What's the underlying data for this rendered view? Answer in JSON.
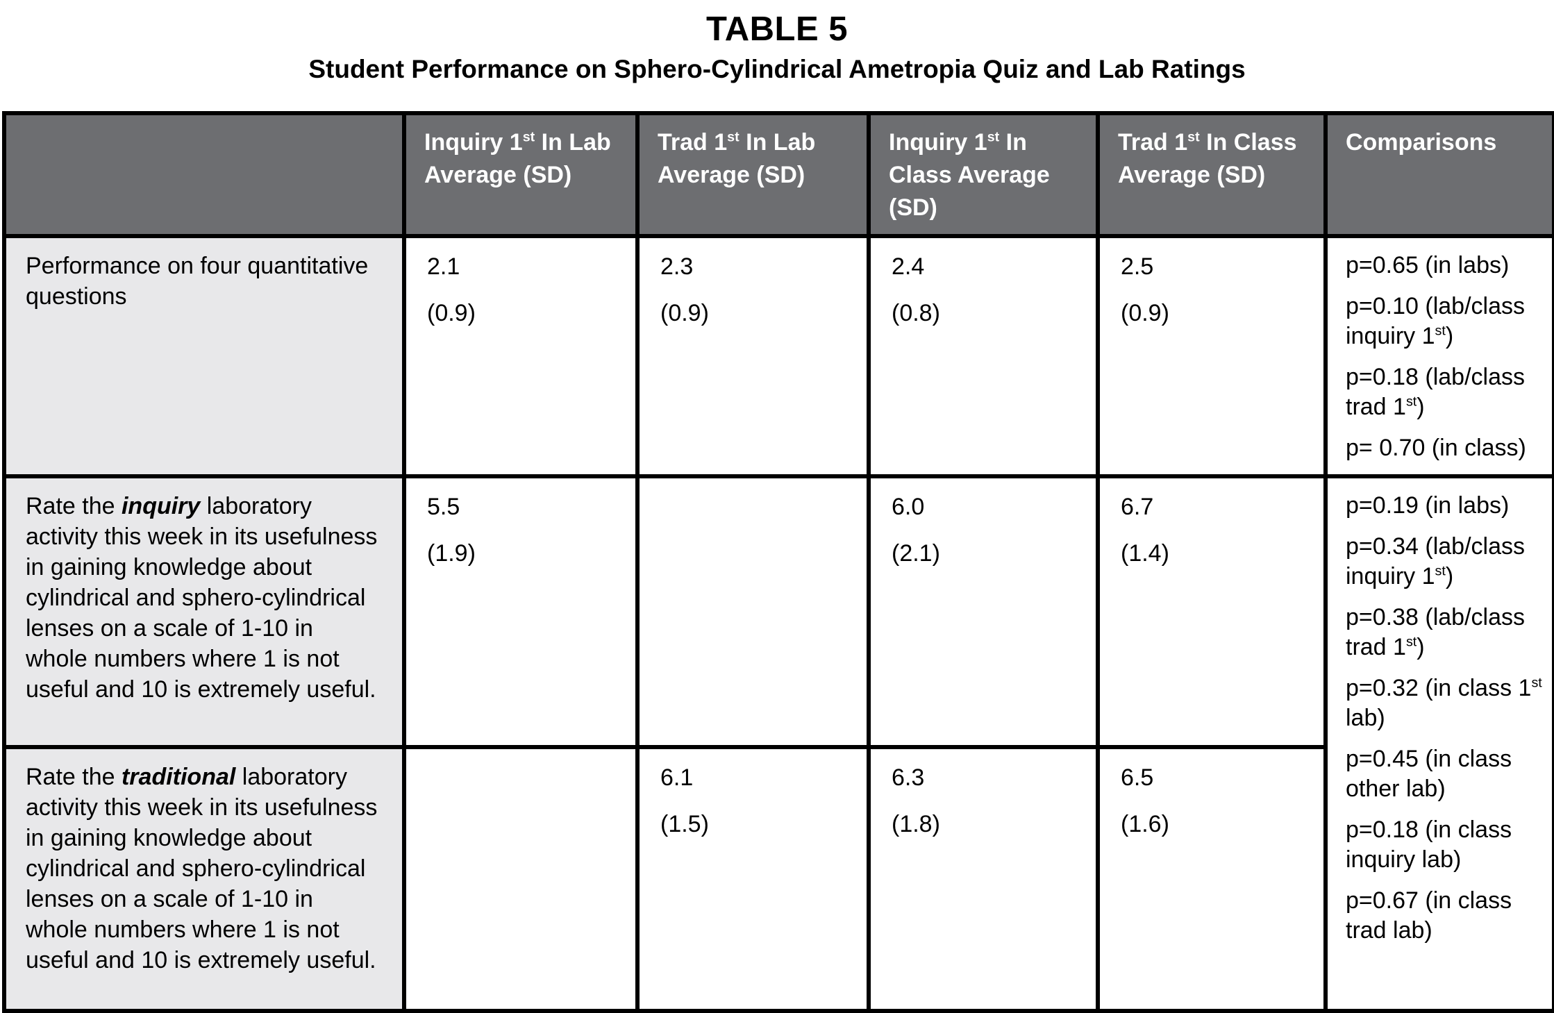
{
  "title": "TABLE 5",
  "subtitle": "Student Performance on Sphero-Cylindrical Ametropia Quiz and Lab Ratings",
  "colors": {
    "header_bg": "#6d6e71",
    "header_text": "#ffffff",
    "label_bg": "#e8e8ea",
    "border": "#000000"
  },
  "table": {
    "headers": {
      "row_header": "",
      "cols": [
        [
          {
            "t": "Inquiry 1"
          },
          {
            "t": "st",
            "sup": true
          },
          {
            "t": " In Lab Average (SD)"
          }
        ],
        [
          {
            "t": "Trad 1"
          },
          {
            "t": "st",
            "sup": true
          },
          {
            "t": " In Lab Average (SD)"
          }
        ],
        [
          {
            "t": "Inquiry 1"
          },
          {
            "t": "st",
            "sup": true
          },
          {
            "t": " In Class Average (SD)"
          }
        ],
        [
          {
            "t": "Trad 1"
          },
          {
            "t": "st",
            "sup": true
          },
          {
            "t": " In Class Average (SD)"
          }
        ],
        [
          {
            "t": "Comparisons"
          }
        ]
      ]
    },
    "rows": [
      {
        "label": [
          {
            "t": "Performance on four quantitative questions"
          }
        ],
        "values": [
          {
            "avg": "2.1",
            "sd": "(0.9)"
          },
          {
            "avg": "2.3",
            "sd": "(0.9)"
          },
          {
            "avg": "2.4",
            "sd": "(0.8)"
          },
          {
            "avg": "2.5",
            "sd": "(0.9)"
          }
        ],
        "comparisons": [
          [
            {
              "t": "p=0.65 (in labs)"
            }
          ],
          [
            {
              "t": "p=0.10 (lab/class inquiry 1"
            },
            {
              "t": "st",
              "sup": true
            },
            {
              "t": ")"
            }
          ],
          [
            {
              "t": "p=0.18 (lab/class trad 1"
            },
            {
              "t": "st",
              "sup": true
            },
            {
              "t": ")"
            }
          ],
          [
            {
              "t": "p= 0.70 (in class)"
            }
          ]
        ]
      },
      {
        "label": [
          {
            "t": "Rate the "
          },
          {
            "t": "inquiry",
            "em": true
          },
          {
            "t": " laboratory activity this week in its usefulness in gaining knowledge about cylindrical and sphero-cylindrical lenses on a scale of 1-10 in whole numbers where 1 is not useful and 10 is extremely useful."
          }
        ],
        "values": [
          {
            "avg": "5.5",
            "sd": "(1.9)"
          },
          {
            "avg": "",
            "sd": ""
          },
          {
            "avg": "6.0",
            "sd": "(2.1)"
          },
          {
            "avg": "6.7",
            "sd": "(1.4)"
          }
        ],
        "comparisons": [
          [
            {
              "t": "p=0.19 (in labs)"
            }
          ],
          [
            {
              "t": "p=0.34 (lab/class inquiry 1"
            },
            {
              "t": "st",
              "sup": true
            },
            {
              "t": ")"
            }
          ],
          [
            {
              "t": "p=0.38 (lab/class trad 1"
            },
            {
              "t": "st",
              "sup": true
            },
            {
              "t": ")"
            }
          ],
          [
            {
              "t": "p=0.32 (in class 1"
            },
            {
              "t": "st",
              "sup": true
            },
            {
              "t": " lab)"
            }
          ],
          [
            {
              "t": "p=0.45 (in class other lab)"
            }
          ],
          [
            {
              "t": "p=0.18 (in class inquiry lab)"
            }
          ],
          [
            {
              "t": "p=0.67 (in class trad lab)"
            }
          ]
        ]
      },
      {
        "label": [
          {
            "t": "Rate the "
          },
          {
            "t": "traditional",
            "em": true
          },
          {
            "t": " laboratory activity this week in its usefulness in gaining knowledge about cylindrical and sphero-cylindrical lenses on a scale of 1-10 in whole numbers where 1 is not useful and 10 is extremely useful."
          }
        ],
        "values": [
          {
            "avg": "",
            "sd": ""
          },
          {
            "avg": "6.1",
            "sd": "(1.5)"
          },
          {
            "avg": "6.3",
            "sd": "(1.8)"
          },
          {
            "avg": "6.5",
            "sd": "(1.6)"
          }
        ]
      }
    ]
  }
}
